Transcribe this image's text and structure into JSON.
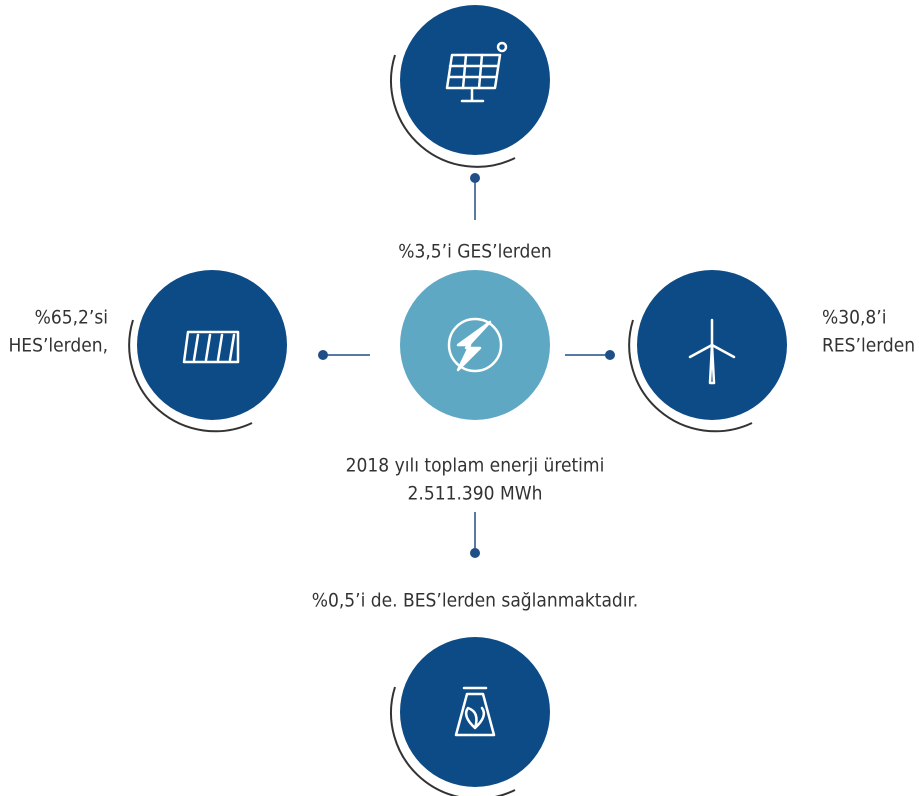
{
  "center": {
    "title": "2018 yılı toplam enerji üretimi",
    "value": "2.511.390 MWh"
  },
  "nodes": [
    {
      "label": [
        "%3,5’i GES’lerden"
      ]
    },
    {
      "label": [
        "%65,2’si",
        "HES’lerden,"
      ]
    },
    {
      "label": [
        "%30,8’i",
        "RES’lerden"
      ]
    },
    {
      "label": [
        "%0,5’i de. BES’lerden sağlanmaktadır."
      ]
    }
  ]
}
